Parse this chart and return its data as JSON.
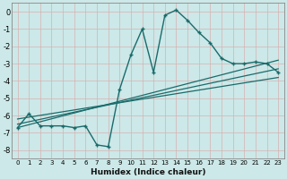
{
  "xlabel": "Humidex (Indice chaleur)",
  "ylabel": "",
  "xlim": [
    -0.5,
    23.5
  ],
  "ylim": [
    -8.5,
    0.5
  ],
  "yticks": [
    0,
    -1,
    -2,
    -3,
    -4,
    -5,
    -6,
    -7,
    -8
  ],
  "xticks": [
    0,
    1,
    2,
    3,
    4,
    5,
    6,
    7,
    8,
    9,
    10,
    11,
    12,
    13,
    14,
    15,
    16,
    17,
    18,
    19,
    20,
    21,
    22,
    23
  ],
  "bg_color": "#cce8e8",
  "grid_color": "#b0d4d4",
  "line_color": "#1a6b6b",
  "curve_x": [
    0,
    1,
    2,
    3,
    4,
    5,
    6,
    7,
    8,
    9,
    10,
    11,
    12,
    13,
    14,
    15,
    16,
    17,
    18,
    19,
    20,
    21,
    22,
    23
  ],
  "curve_y": [
    -6.7,
    -5.9,
    -6.6,
    -6.6,
    -6.6,
    -6.7,
    -6.6,
    -7.7,
    -7.8,
    -4.5,
    -2.5,
    -1.0,
    -3.5,
    -0.2,
    0.1,
    -0.5,
    -1.2,
    -1.8,
    -2.7,
    -3.0,
    -3.0,
    -2.9,
    -3.0,
    -3.5
  ],
  "line1_x": [
    0,
    23
  ],
  "line1_y": [
    -6.7,
    -2.8
  ],
  "line2_x": [
    0,
    23
  ],
  "line2_y": [
    -6.5,
    -3.3
  ],
  "line3_x": [
    0,
    23
  ],
  "line3_y": [
    -6.2,
    -3.8
  ]
}
